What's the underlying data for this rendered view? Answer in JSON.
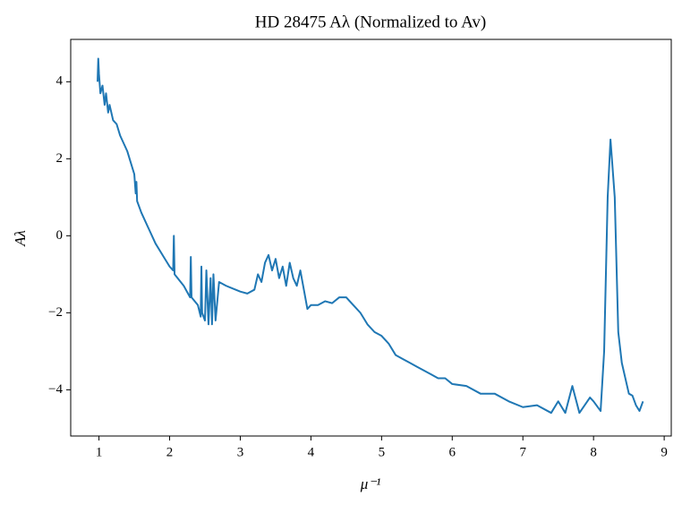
{
  "chart_data": {
    "type": "line",
    "title": "HD 28475 Aλ (Normalized to Av)",
    "xlabel": "μ⁻¹",
    "ylabel": "Aλ",
    "x": [
      0.98,
      0.99,
      1.0,
      1.02,
      1.05,
      1.08,
      1.1,
      1.13,
      1.15,
      1.2,
      1.25,
      1.3,
      1.4,
      1.5,
      1.52,
      1.53,
      1.54,
      1.6,
      1.7,
      1.8,
      1.9,
      2.0,
      2.05,
      2.06,
      2.07,
      2.2,
      2.29,
      2.3,
      2.31,
      2.4,
      2.44,
      2.45,
      2.46,
      2.5,
      2.52,
      2.55,
      2.58,
      2.6,
      2.62,
      2.65,
      2.7,
      2.8,
      3.0,
      3.1,
      3.2,
      3.25,
      3.3,
      3.35,
      3.4,
      3.45,
      3.5,
      3.55,
      3.6,
      3.65,
      3.7,
      3.75,
      3.8,
      3.85,
      3.9,
      3.95,
      4.0,
      4.1,
      4.2,
      4.3,
      4.4,
      4.5,
      4.6,
      4.7,
      4.8,
      4.9,
      5.0,
      5.1,
      5.2,
      5.3,
      5.4,
      5.5,
      5.6,
      5.7,
      5.8,
      5.9,
      6.0,
      6.2,
      6.4,
      6.6,
      6.8,
      7.0,
      7.2,
      7.4,
      7.5,
      7.6,
      7.7,
      7.8,
      7.95,
      8.0,
      8.1,
      8.15,
      8.2,
      8.24,
      8.3,
      8.35,
      8.4,
      8.5,
      8.55,
      8.6,
      8.65,
      8.7
    ],
    "series": [
      {
        "color": "#1f77b4",
        "values": [
          4.0,
          4.6,
          4.2,
          3.7,
          3.9,
          3.4,
          3.7,
          3.2,
          3.4,
          3.0,
          2.9,
          2.6,
          2.2,
          1.6,
          1.1,
          1.4,
          0.9,
          0.6,
          0.2,
          -0.2,
          -0.5,
          -0.8,
          -0.9,
          0.0,
          -1.0,
          -1.3,
          -1.6,
          -0.55,
          -1.6,
          -1.8,
          -2.1,
          -0.8,
          -2.0,
          -2.2,
          -0.9,
          -2.3,
          -1.1,
          -2.3,
          -1.0,
          -2.2,
          -1.2,
          -1.3,
          -1.45,
          -1.5,
          -1.4,
          -1.0,
          -1.2,
          -0.7,
          -0.5,
          -0.9,
          -0.6,
          -1.1,
          -0.8,
          -1.3,
          -0.7,
          -1.1,
          -1.3,
          -0.9,
          -1.4,
          -1.9,
          -1.8,
          -1.8,
          -1.7,
          -1.75,
          -1.6,
          -1.6,
          -1.8,
          -2.0,
          -2.3,
          -2.5,
          -2.6,
          -2.8,
          -3.1,
          -3.2,
          -3.3,
          -3.4,
          -3.5,
          -3.6,
          -3.7,
          -3.7,
          -3.85,
          -3.9,
          -4.1,
          -4.1,
          -4.3,
          -4.45,
          -4.4,
          -4.6,
          -4.3,
          -4.6,
          -3.9,
          -4.6,
          -4.2,
          -4.3,
          -4.55,
          -3.0,
          1.0,
          2.5,
          1.0,
          -2.5,
          -3.3,
          -4.1,
          -4.15,
          -4.4,
          -4.55,
          -4.3
        ]
      }
    ],
    "xlim": [
      0.6,
      9.1
    ],
    "ylim": [
      -5.2,
      5.1
    ],
    "xticks": [
      1,
      2,
      3,
      4,
      5,
      6,
      7,
      8,
      9
    ],
    "yticks": [
      {
        "value": -4,
        "label": "−4"
      },
      {
        "value": -2,
        "label": "−2"
      },
      0,
      2,
      4
    ]
  }
}
